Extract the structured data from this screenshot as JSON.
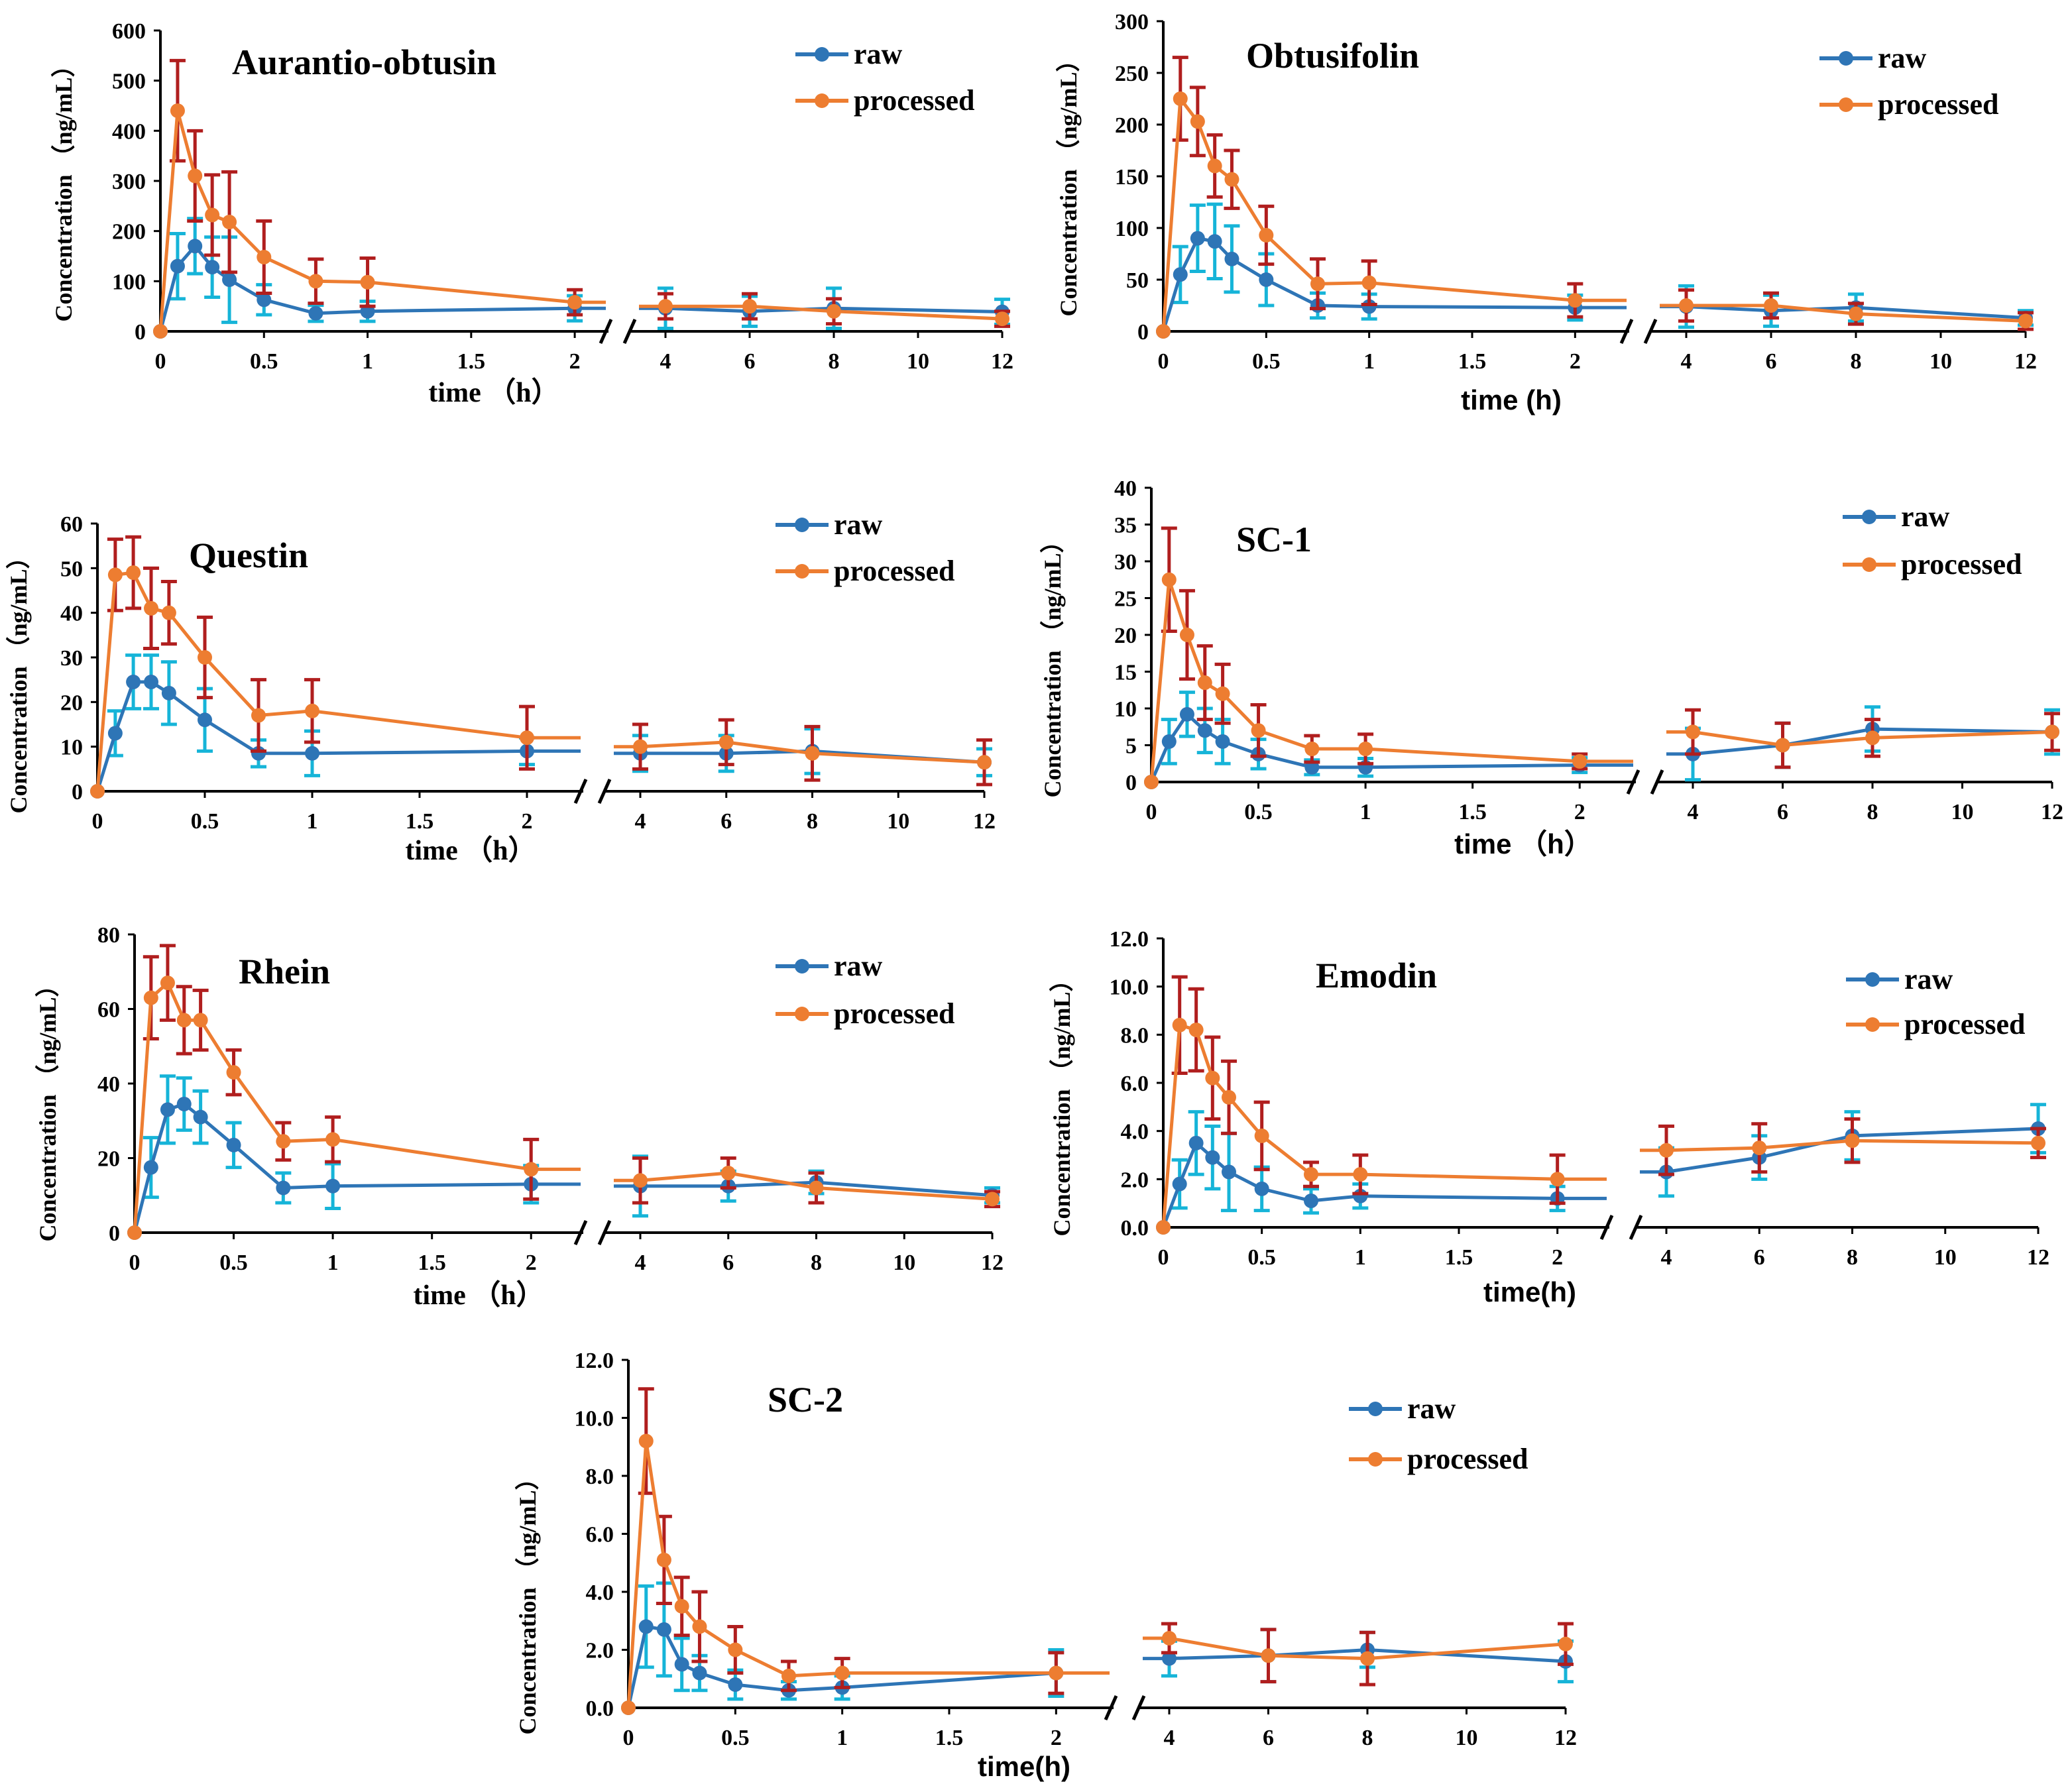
{
  "legend": {
    "raw": "raw",
    "processed": "processed"
  },
  "colors": {
    "raw": "#2e75b6",
    "processed": "#ed7d31",
    "raw_err": "#16b4d8",
    "processed_err": "#b01e1e",
    "axis": "#000000"
  },
  "chart_data": [
    {
      "type": "line",
      "title": "Aurantio-obtusin",
      "ylabel": "Concentration （ng/mL）",
      "xlabel": "time （h）",
      "ylim": [
        0,
        600
      ],
      "yticks": [
        "0",
        "100",
        "200",
        "300",
        "400",
        "500",
        "600"
      ],
      "x_left_ticks": [
        "0",
        "0.5",
        "1",
        "1.5",
        "2"
      ],
      "x_right_ticks": [
        "4",
        "6",
        "8",
        "10",
        "12"
      ],
      "x": [
        0,
        0.083,
        0.167,
        0.25,
        0.333,
        0.5,
        0.75,
        1,
        2,
        4,
        6,
        8,
        12
      ],
      "series": [
        {
          "name": "raw",
          "values": [
            0,
            130,
            170,
            128,
            103,
            63,
            36,
            40,
            46,
            46,
            40,
            46,
            39
          ],
          "errors": [
            0,
            65,
            55,
            60,
            85,
            30,
            16,
            20,
            25,
            40,
            30,
            40,
            25
          ]
        },
        {
          "name": "processed",
          "values": [
            0,
            440,
            310,
            232,
            218,
            148,
            100,
            98,
            58,
            50,
            50,
            40,
            25
          ],
          "errors": [
            0,
            100,
            90,
            80,
            100,
            72,
            44,
            48,
            25,
            25,
            25,
            25,
            15
          ]
        }
      ]
    },
    {
      "type": "line",
      "title": "Obtusifolin",
      "ylabel": "Concentration （ng/mL）",
      "xlabel": "time (h)",
      "ylim": [
        0,
        300
      ],
      "yticks": [
        "0",
        "50",
        "100",
        "150",
        "200",
        "250",
        "300"
      ],
      "x_left_ticks": [
        "0",
        "0.5",
        "1",
        "1.5",
        "2"
      ],
      "x_right_ticks": [
        "4",
        "6",
        "8",
        "10",
        "12"
      ],
      "x": [
        0,
        0.083,
        0.167,
        0.25,
        0.333,
        0.5,
        0.75,
        1,
        2,
        4,
        6,
        8,
        12
      ],
      "series": [
        {
          "name": "raw",
          "values": [
            0,
            55,
            90,
            87,
            70,
            50,
            25,
            24,
            23,
            24,
            20,
            23,
            13
          ],
          "errors": [
            0,
            27,
            32,
            36,
            32,
            25,
            12,
            12,
            12,
            20,
            15,
            13,
            7
          ]
        },
        {
          "name": "processed",
          "values": [
            0,
            225,
            203,
            160,
            147,
            93,
            46,
            47,
            30,
            25,
            25,
            17,
            10
          ],
          "errors": [
            0,
            40,
            33,
            30,
            28,
            28,
            24,
            21,
            16,
            15,
            12,
            10,
            8
          ]
        }
      ]
    },
    {
      "type": "line",
      "title": "Questin",
      "ylabel": "Concentration （ng/mL）",
      "xlabel": "time （h）",
      "ylim": [
        0,
        60
      ],
      "yticks": [
        "0",
        "10",
        "20",
        "30",
        "40",
        "50",
        "60"
      ],
      "x_left_ticks": [
        "0",
        "0.5",
        "1",
        "1.5",
        "2"
      ],
      "x_right_ticks": [
        "4",
        "6",
        "8",
        "10",
        "12"
      ],
      "x": [
        0,
        0.083,
        0.167,
        0.25,
        0.333,
        0.5,
        0.75,
        1,
        2,
        4,
        6,
        8,
        12
      ],
      "series": [
        {
          "name": "raw",
          "values": [
            0,
            13,
            24.5,
            24.5,
            22,
            16,
            8.5,
            8.5,
            9,
            8.5,
            8.5,
            9,
            6.5
          ],
          "errors": [
            0,
            5,
            6,
            6,
            7,
            7,
            3,
            5,
            3,
            4,
            4,
            5,
            3
          ]
        },
        {
          "name": "processed",
          "values": [
            0,
            48.5,
            49,
            41,
            40,
            30,
            17,
            18,
            12,
            10,
            11,
            8.5,
            6.5
          ],
          "errors": [
            0,
            8,
            8,
            9,
            7,
            9,
            8,
            7,
            7,
            5,
            5,
            6,
            5
          ]
        }
      ]
    },
    {
      "type": "line",
      "title": "SC-1",
      "ylabel": "Concentration （ng/mL）",
      "xlabel": "time （h）",
      "ylim": [
        0,
        40
      ],
      "yticks": [
        "0",
        "5",
        "10",
        "15",
        "20",
        "25",
        "30",
        "35",
        "40"
      ],
      "x_left_ticks": [
        "0",
        "0.5",
        "1",
        "1.5",
        "2"
      ],
      "x_right_ticks": [
        "4",
        "6",
        "8",
        "10",
        "12"
      ],
      "x": [
        0,
        0.083,
        0.167,
        0.25,
        0.333,
        0.5,
        0.75,
        1,
        2,
        4,
        6,
        8,
        12
      ],
      "series": [
        {
          "name": "raw",
          "values": [
            0,
            5.5,
            9.2,
            7,
            5.5,
            3.8,
            2,
            2,
            2.3,
            3.8,
            5,
            7.2,
            6.8
          ],
          "errors": [
            0,
            3,
            3,
            3,
            3,
            2,
            1,
            1.2,
            1,
            3.5,
            3,
            3,
            3
          ]
        },
        {
          "name": "processed",
          "values": [
            0,
            27.5,
            20,
            13.5,
            12,
            7,
            4.5,
            4.5,
            2.8,
            6.8,
            5,
            6,
            6.8
          ],
          "errors": [
            0,
            7,
            6,
            5,
            4,
            3.5,
            1.8,
            2,
            1,
            3,
            3,
            2.5,
            2.5
          ]
        }
      ]
    },
    {
      "type": "line",
      "title": "Rhein",
      "ylabel": "Concentration （ng/mL）",
      "xlabel": "time （h）",
      "ylim": [
        0,
        80
      ],
      "yticks": [
        "0",
        "20",
        "40",
        "60",
        "80"
      ],
      "x_left_ticks": [
        "0",
        "0.5",
        "1",
        "1.5",
        "2"
      ],
      "x_right_ticks": [
        "4",
        "6",
        "8",
        "10",
        "12"
      ],
      "x": [
        0,
        0.083,
        0.167,
        0.25,
        0.333,
        0.5,
        0.75,
        1,
        2,
        4,
        6,
        8,
        12
      ],
      "series": [
        {
          "name": "raw",
          "values": [
            0,
            17.5,
            33,
            34.5,
            31,
            23.5,
            12,
            12.5,
            13,
            12.5,
            12.5,
            13.5,
            10
          ],
          "errors": [
            0,
            8,
            9,
            7,
            7,
            6,
            4,
            6,
            5,
            8,
            4,
            3,
            2
          ]
        },
        {
          "name": "processed",
          "values": [
            0,
            63,
            67,
            57,
            57,
            43,
            24.5,
            25,
            17,
            14,
            16,
            12,
            9
          ],
          "errors": [
            0,
            11,
            10,
            9,
            8,
            6,
            5,
            6,
            8,
            6,
            4,
            4,
            2
          ]
        }
      ]
    },
    {
      "type": "line",
      "title": "Emodin",
      "ylabel": "Concentration （ng/mL）",
      "xlabel": "time(h)",
      "ylim": [
        0,
        12
      ],
      "yticks": [
        "0.0",
        "2.0",
        "4.0",
        "6.0",
        "8.0",
        "10.0",
        "12.0"
      ],
      "x_left_ticks": [
        "0",
        "0.5",
        "1",
        "1.5",
        "2"
      ],
      "x_right_ticks": [
        "4",
        "6",
        "8",
        "10",
        "12"
      ],
      "x": [
        0,
        0.083,
        0.167,
        0.25,
        0.333,
        0.5,
        0.75,
        1,
        2,
        4,
        6,
        8,
        12
      ],
      "series": [
        {
          "name": "raw",
          "values": [
            0,
            1.8,
            3.5,
            2.9,
            2.3,
            1.6,
            1.1,
            1.3,
            1.2,
            2.3,
            2.9,
            3.8,
            4.1
          ],
          "errors": [
            0,
            1,
            1.3,
            1.3,
            1.6,
            0.9,
            0.5,
            0.5,
            0.5,
            1,
            0.9,
            1,
            1
          ]
        },
        {
          "name": "processed",
          "values": [
            0,
            8.4,
            8.2,
            6.2,
            5.4,
            3.8,
            2.2,
            2.2,
            2,
            3.2,
            3.3,
            3.6,
            3.5
          ],
          "errors": [
            0,
            2,
            1.7,
            1.7,
            1.5,
            1.4,
            0.5,
            0.8,
            1,
            1,
            1,
            0.9,
            0.6
          ]
        }
      ]
    },
    {
      "type": "line",
      "title": "SC-2",
      "ylabel": "Concentration （ng/mL）",
      "xlabel": "time(h)",
      "ylim": [
        0,
        12
      ],
      "yticks": [
        "0.0",
        "2.0",
        "4.0",
        "6.0",
        "8.0",
        "10.0",
        "12.0"
      ],
      "x_left_ticks": [
        "0",
        "0.5",
        "1",
        "1.5",
        "2"
      ],
      "x_right_ticks": [
        "4",
        "6",
        "8",
        "10",
        "12"
      ],
      "x": [
        0,
        0.083,
        0.167,
        0.25,
        0.333,
        0.5,
        0.75,
        1,
        2,
        4,
        6,
        8,
        12
      ],
      "series": [
        {
          "name": "raw",
          "values": [
            0,
            2.8,
            2.7,
            1.5,
            1.2,
            0.8,
            0.6,
            0.7,
            1.2,
            1.7,
            1.8,
            2,
            1.6
          ],
          "errors": [
            0,
            1.4,
            1.6,
            0.9,
            0.6,
            0.5,
            0.3,
            0.4,
            0.8,
            0.6,
            0.9,
            0.6,
            0.7
          ]
        },
        {
          "name": "processed",
          "values": [
            0,
            9.2,
            5.1,
            3.5,
            2.8,
            2,
            1.1,
            1.2,
            1.2,
            2.4,
            1.8,
            1.7,
            2.2
          ],
          "errors": [
            0,
            1.8,
            1.5,
            1,
            1.2,
            0.8,
            0.5,
            0.5,
            0.7,
            0.5,
            0.9,
            0.9,
            0.7
          ]
        }
      ]
    }
  ]
}
